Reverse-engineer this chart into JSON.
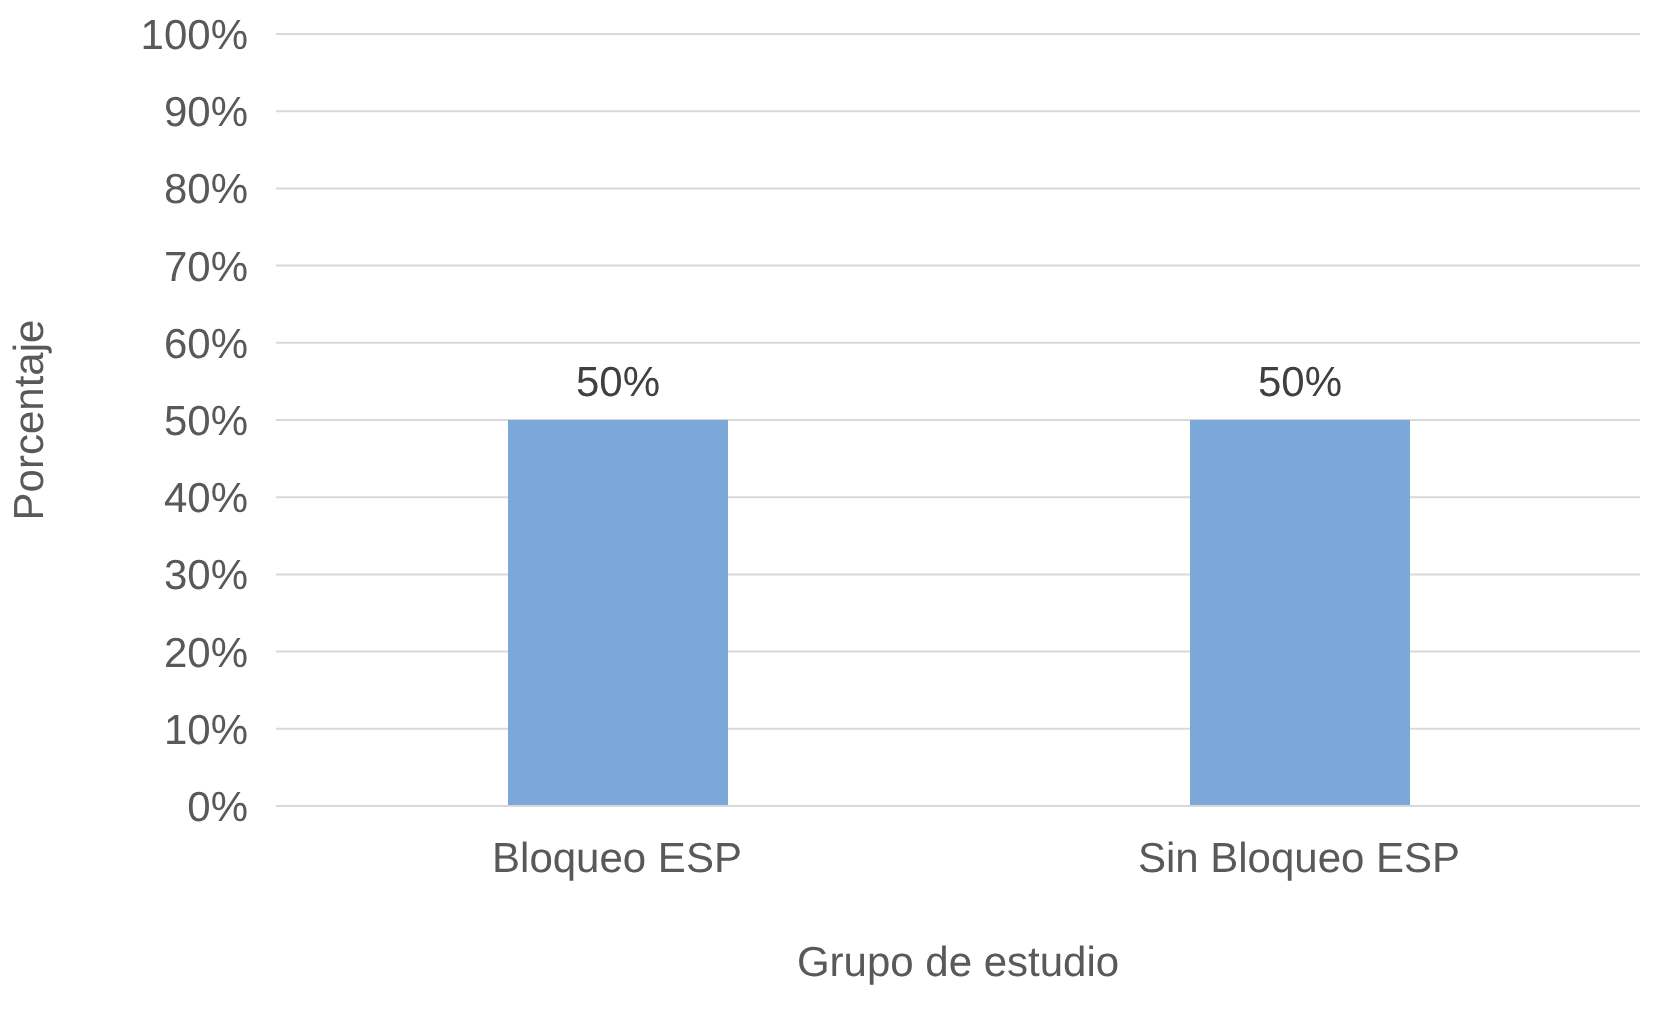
{
  "chart_data": {
    "type": "bar",
    "categories": [
      "Bloqueo ESP",
      "Sin Bloqueo ESP"
    ],
    "values": [
      50,
      50
    ],
    "value_labels": [
      "50%",
      "50%"
    ],
    "color": "#7ba7d9",
    "xlabel": "Grupo de estudio",
    "ylabel": "Porcentaje",
    "ylim": [
      0,
      100
    ],
    "yticks": [
      {
        "value": 0,
        "label": "0%"
      },
      {
        "value": 10,
        "label": "10%"
      },
      {
        "value": 20,
        "label": "20%"
      },
      {
        "value": 30,
        "label": "30%"
      },
      {
        "value": 40,
        "label": "40%"
      },
      {
        "value": 50,
        "label": "50%"
      },
      {
        "value": 60,
        "label": "60%"
      },
      {
        "value": 70,
        "label": "70%"
      },
      {
        "value": 80,
        "label": "80%"
      },
      {
        "value": 90,
        "label": "90%"
      },
      {
        "value": 100,
        "label": "100%"
      }
    ],
    "grid": "y",
    "legend": false
  }
}
